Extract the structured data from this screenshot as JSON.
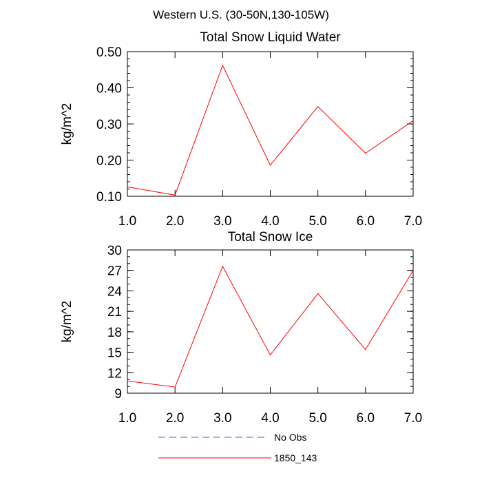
{
  "figure_title": "Western U.S. (30-50N,130-105W)",
  "colors": {
    "axes": "#000000",
    "series_model": "#ff0000",
    "series_obs": "#5a5acd"
  },
  "legend": {
    "entries": [
      {
        "label": "No Obs",
        "style": "dashed",
        "color": "#5a5acd"
      },
      {
        "label": "1850_143",
        "style": "solid",
        "color": "#ff0000"
      }
    ]
  },
  "chart_data": [
    {
      "type": "line",
      "title": "Total Snow Liquid Water",
      "xlabel": "",
      "ylabel": "kg/m^2",
      "x": [
        1,
        2,
        3,
        4,
        5,
        6,
        7
      ],
      "xlim": [
        1,
        7
      ],
      "ylim": [
        0.1,
        0.5
      ],
      "xticks": [
        1,
        2,
        3,
        4,
        5,
        6,
        7
      ],
      "xtick_labels": [
        "1.0",
        "2.0",
        "3.0",
        "4.0",
        "5.0",
        "6.0",
        "7.0"
      ],
      "yticks": [
        0.1,
        0.2,
        0.3,
        0.4,
        0.5
      ],
      "ytick_labels": [
        "0.10",
        "0.20",
        "0.30",
        "0.40",
        "0.50"
      ],
      "y_minor_step": 0.02,
      "series": [
        {
          "name": "1850_143",
          "values": [
            0.126,
            0.103,
            0.462,
            0.186,
            0.348,
            0.219,
            0.309
          ]
        }
      ]
    },
    {
      "type": "line",
      "title": "Total Snow Ice",
      "xlabel": "",
      "ylabel": "kg/m^2",
      "x": [
        1,
        2,
        3,
        4,
        5,
        6,
        7
      ],
      "xlim": [
        1,
        7
      ],
      "ylim": [
        9,
        30
      ],
      "xticks": [
        1,
        2,
        3,
        4,
        5,
        6,
        7
      ],
      "xtick_labels": [
        "1.0",
        "2.0",
        "3.0",
        "4.0",
        "5.0",
        "6.0",
        "7.0"
      ],
      "yticks": [
        9,
        12,
        15,
        18,
        21,
        24,
        27,
        30
      ],
      "ytick_labels": [
        "9",
        "12",
        "15",
        "18",
        "21",
        "24",
        "27",
        "30"
      ],
      "y_minor_step": 1,
      "series": [
        {
          "name": "1850_143",
          "values": [
            10.8,
            9.9,
            27.6,
            14.6,
            23.6,
            15.4,
            27.0
          ]
        }
      ]
    }
  ]
}
